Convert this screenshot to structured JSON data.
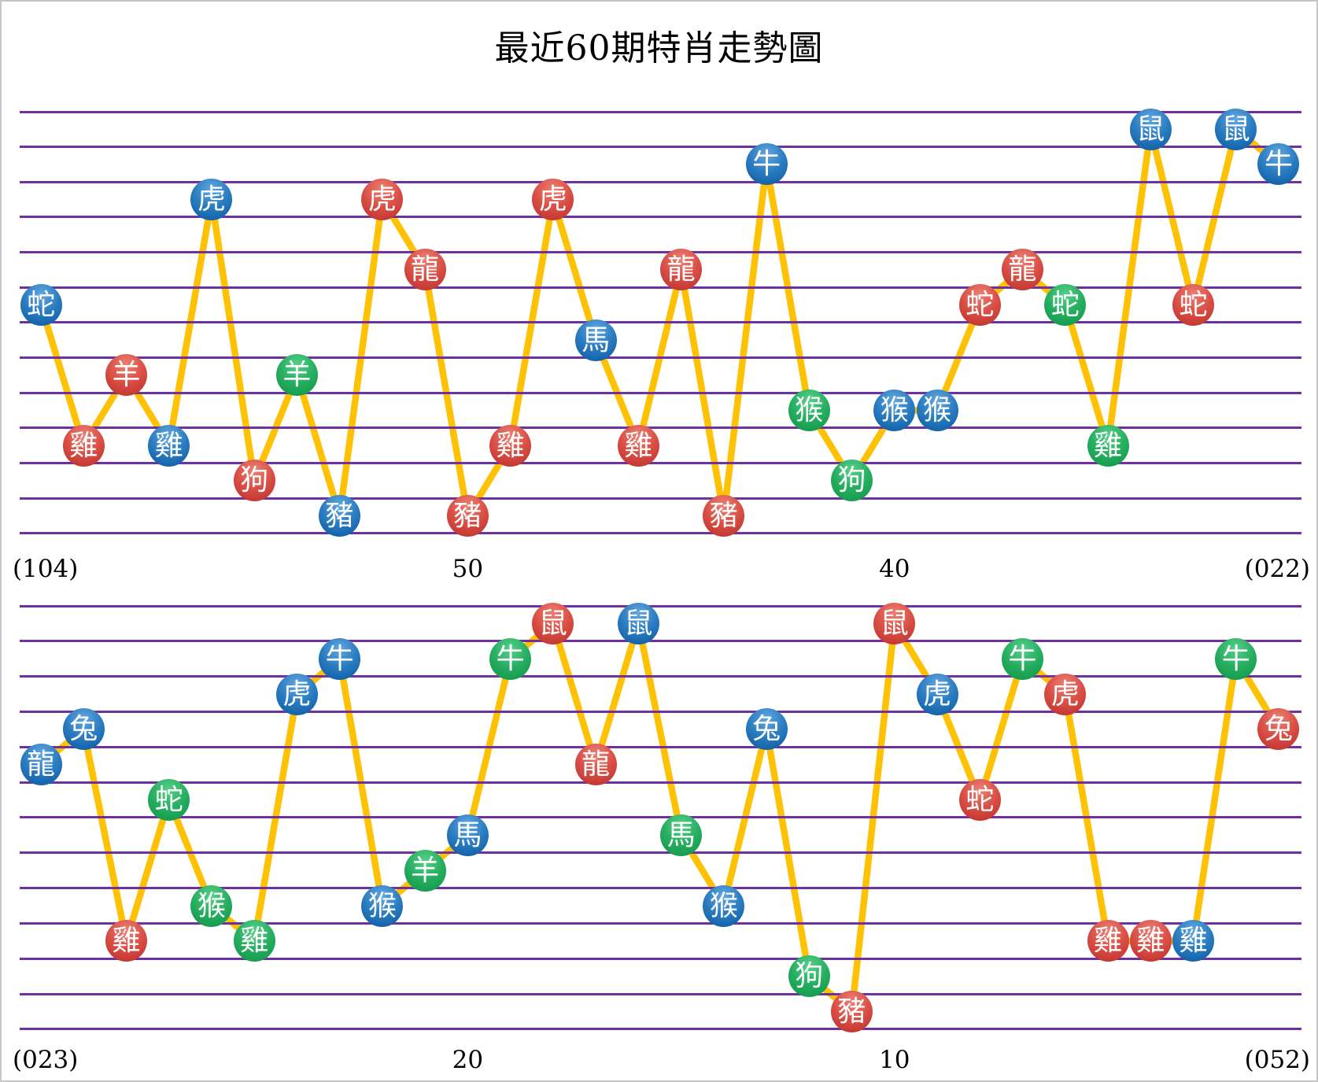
{
  "title": "最近60期特肖走勢圖",
  "colors": {
    "blue_ball": "#0e60aa",
    "red_ball": "#d04038",
    "green_ball": "#21a75c",
    "trend_line": "#ffc104",
    "gridline": "#7030a0",
    "text": "#000000",
    "page_border": "#c6c6c6"
  },
  "chart_data": {
    "type": "line",
    "title": "最近60期特肖走勢圖",
    "ylabel": "",
    "xlabel": "",
    "grid": "horizontal purple lines, 13 per panel",
    "legend": "none",
    "y_categories_top_to_bottom": [
      "鼠",
      "牛",
      "虎",
      "兔",
      "龍",
      "蛇",
      "馬",
      "羊",
      "猴",
      "雞",
      "狗",
      "豬"
    ],
    "panels": [
      {
        "x_axis_labels": [
          {
            "text": "(104)",
            "anchor": "left"
          },
          {
            "text": "50",
            "anchor": "col",
            "col": 11
          },
          {
            "text": "40",
            "anchor": "col",
            "col": 21
          },
          {
            "text": "(022)",
            "anchor": "right"
          }
        ],
        "points": [
          {
            "zodiac": "蛇",
            "color": "blue"
          },
          {
            "zodiac": "雞",
            "color": "red"
          },
          {
            "zodiac": "羊",
            "color": "red"
          },
          {
            "zodiac": "雞",
            "color": "blue"
          },
          {
            "zodiac": "虎",
            "color": "blue"
          },
          {
            "zodiac": "狗",
            "color": "red"
          },
          {
            "zodiac": "羊",
            "color": "green"
          },
          {
            "zodiac": "豬",
            "color": "blue"
          },
          {
            "zodiac": "虎",
            "color": "red"
          },
          {
            "zodiac": "龍",
            "color": "red"
          },
          {
            "zodiac": "豬",
            "color": "red"
          },
          {
            "zodiac": "雞",
            "color": "red"
          },
          {
            "zodiac": "虎",
            "color": "red"
          },
          {
            "zodiac": "馬",
            "color": "blue"
          },
          {
            "zodiac": "雞",
            "color": "red"
          },
          {
            "zodiac": "龍",
            "color": "red"
          },
          {
            "zodiac": "豬",
            "color": "red"
          },
          {
            "zodiac": "牛",
            "color": "blue"
          },
          {
            "zodiac": "猴",
            "color": "green"
          },
          {
            "zodiac": "狗",
            "color": "green"
          },
          {
            "zodiac": "猴",
            "color": "blue"
          },
          {
            "zodiac": "猴",
            "color": "blue"
          },
          {
            "zodiac": "蛇",
            "color": "red"
          },
          {
            "zodiac": "龍",
            "color": "red"
          },
          {
            "zodiac": "蛇",
            "color": "green"
          },
          {
            "zodiac": "雞",
            "color": "green"
          },
          {
            "zodiac": "鼠",
            "color": "blue"
          },
          {
            "zodiac": "蛇",
            "color": "red"
          },
          {
            "zodiac": "鼠",
            "color": "blue"
          },
          {
            "zodiac": "牛",
            "color": "blue"
          }
        ]
      },
      {
        "x_axis_labels": [
          {
            "text": "(023)",
            "anchor": "left"
          },
          {
            "text": "20",
            "anchor": "col",
            "col": 11
          },
          {
            "text": "10",
            "anchor": "col",
            "col": 21
          },
          {
            "text": "(052)",
            "anchor": "right"
          }
        ],
        "points": [
          {
            "zodiac": "龍",
            "color": "blue"
          },
          {
            "zodiac": "兔",
            "color": "blue"
          },
          {
            "zodiac": "雞",
            "color": "red"
          },
          {
            "zodiac": "蛇",
            "color": "green"
          },
          {
            "zodiac": "猴",
            "color": "green"
          },
          {
            "zodiac": "雞",
            "color": "green"
          },
          {
            "zodiac": "虎",
            "color": "blue"
          },
          {
            "zodiac": "牛",
            "color": "blue"
          },
          {
            "zodiac": "猴",
            "color": "blue"
          },
          {
            "zodiac": "羊",
            "color": "green"
          },
          {
            "zodiac": "馬",
            "color": "blue"
          },
          {
            "zodiac": "牛",
            "color": "green"
          },
          {
            "zodiac": "鼠",
            "color": "red"
          },
          {
            "zodiac": "龍",
            "color": "red"
          },
          {
            "zodiac": "鼠",
            "color": "blue"
          },
          {
            "zodiac": "馬",
            "color": "green"
          },
          {
            "zodiac": "猴",
            "color": "blue"
          },
          {
            "zodiac": "兔",
            "color": "blue"
          },
          {
            "zodiac": "狗",
            "color": "green"
          },
          {
            "zodiac": "豬",
            "color": "red"
          },
          {
            "zodiac": "鼠",
            "color": "red"
          },
          {
            "zodiac": "虎",
            "color": "blue"
          },
          {
            "zodiac": "蛇",
            "color": "red"
          },
          {
            "zodiac": "牛",
            "color": "green"
          },
          {
            "zodiac": "虎",
            "color": "red"
          },
          {
            "zodiac": "雞",
            "color": "red"
          },
          {
            "zodiac": "雞",
            "color": "red"
          },
          {
            "zodiac": "雞",
            "color": "blue"
          },
          {
            "zodiac": "牛",
            "color": "green"
          },
          {
            "zodiac": "兔",
            "color": "red"
          }
        ]
      }
    ]
  }
}
